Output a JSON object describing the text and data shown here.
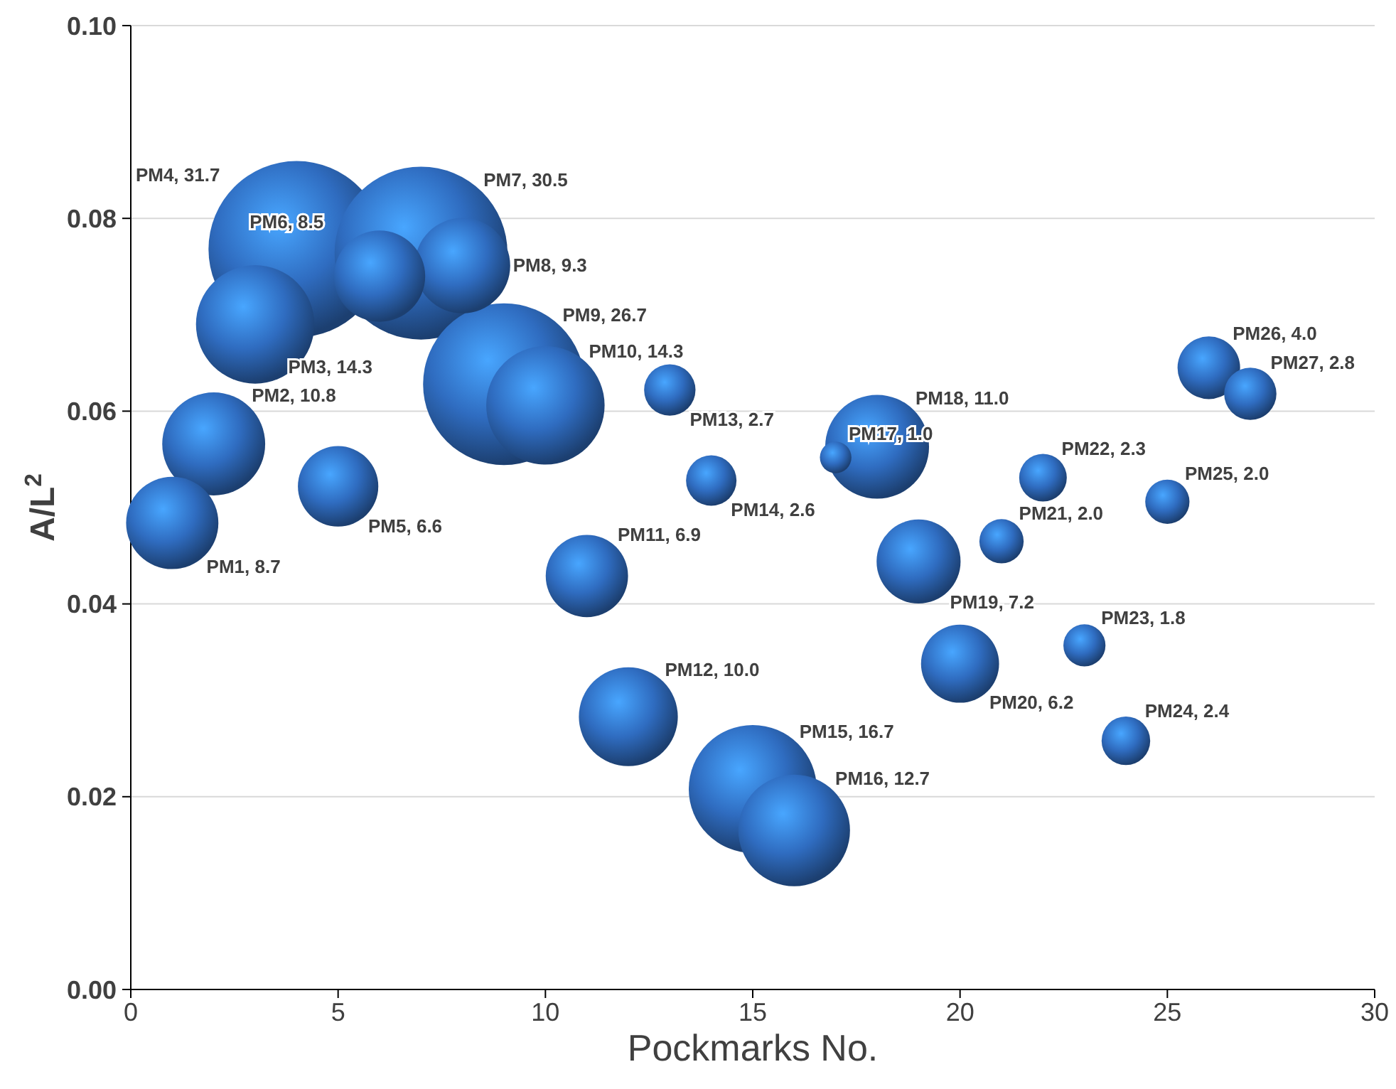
{
  "chart_data": {
    "type": "bubble",
    "xlabel": "Pockmarks No.",
    "ylabel": "A/L$^{2}$",
    "xlim": [
      0,
      30
    ],
    "ylim": [
      0,
      0.1
    ],
    "xticks": [
      0,
      5,
      10,
      15,
      20,
      25,
      30
    ],
    "yticks": [
      {
        "value": 0,
        "label": "0.00"
      },
      {
        "value": 0.02,
        "label": "0.02"
      },
      {
        "value": 0.04,
        "label": "0.04"
      },
      {
        "value": 0.06,
        "label": "0.06"
      },
      {
        "value": 0.08,
        "label": "0.08"
      },
      {
        "value": 0.1,
        "label": "0.10"
      }
    ],
    "grid": "y",
    "series": [
      {
        "color": "#2f6cc0",
        "x": [
          1,
          2,
          3,
          4,
          5,
          6,
          7,
          8,
          9,
          10,
          11,
          12,
          13,
          14,
          15,
          16,
          17,
          18,
          19,
          20,
          21,
          22,
          23,
          24,
          25,
          26,
          27
        ],
        "values": [
          0.0484,
          0.0566,
          0.069,
          0.0768,
          0.0522,
          0.074,
          0.0764,
          0.0751,
          0.0628,
          0.0606,
          0.0429,
          0.0283,
          0.0622,
          0.0528,
          0.0208,
          0.0165,
          0.0552,
          0.0563,
          0.0444,
          0.0338,
          0.0465,
          0.0531,
          0.0357,
          0.0258,
          0.0506,
          0.0645,
          0.0618
        ],
        "sizes": [
          0.274,
          0.341,
          0.451,
          1,
          0.208,
          0.268,
          0.962,
          0.293,
          0.842,
          0.451,
          0.218,
          0.315,
          0.085,
          0.082,
          0.527,
          0.401,
          0.032,
          0.347,
          0.227,
          0.196,
          0.063,
          0.073,
          0.057,
          0.076,
          0.063,
          0.126,
          0.088
        ],
        "value_labels": [
          "PM1, 8.7",
          "PM2, 10.8",
          "PM3, 14.3",
          "PM4, 31.7",
          "PM5, 6.6",
          "PM6, 8.5",
          "PM7, 30.5",
          "PM8, 9.3",
          "PM9, 26.7",
          "PM10, 14.3",
          "PM11, 6.9",
          "PM12, 10.0",
          "PM13, 2.7",
          "PM14, 2.6",
          "PM15, 16.7",
          "PM16, 12.7",
          "PM17, 1.0",
          "PM18, 11.0",
          "PM19, 7.2",
          "PM20, 6.2",
          "PM21, 2.0",
          "PM22, 2.3",
          "PM23, 1.8",
          "PM24, 2.4",
          "PM25, 2.0",
          "PM26, 4.0",
          "PM27, 2.8"
        ]
      }
    ]
  }
}
